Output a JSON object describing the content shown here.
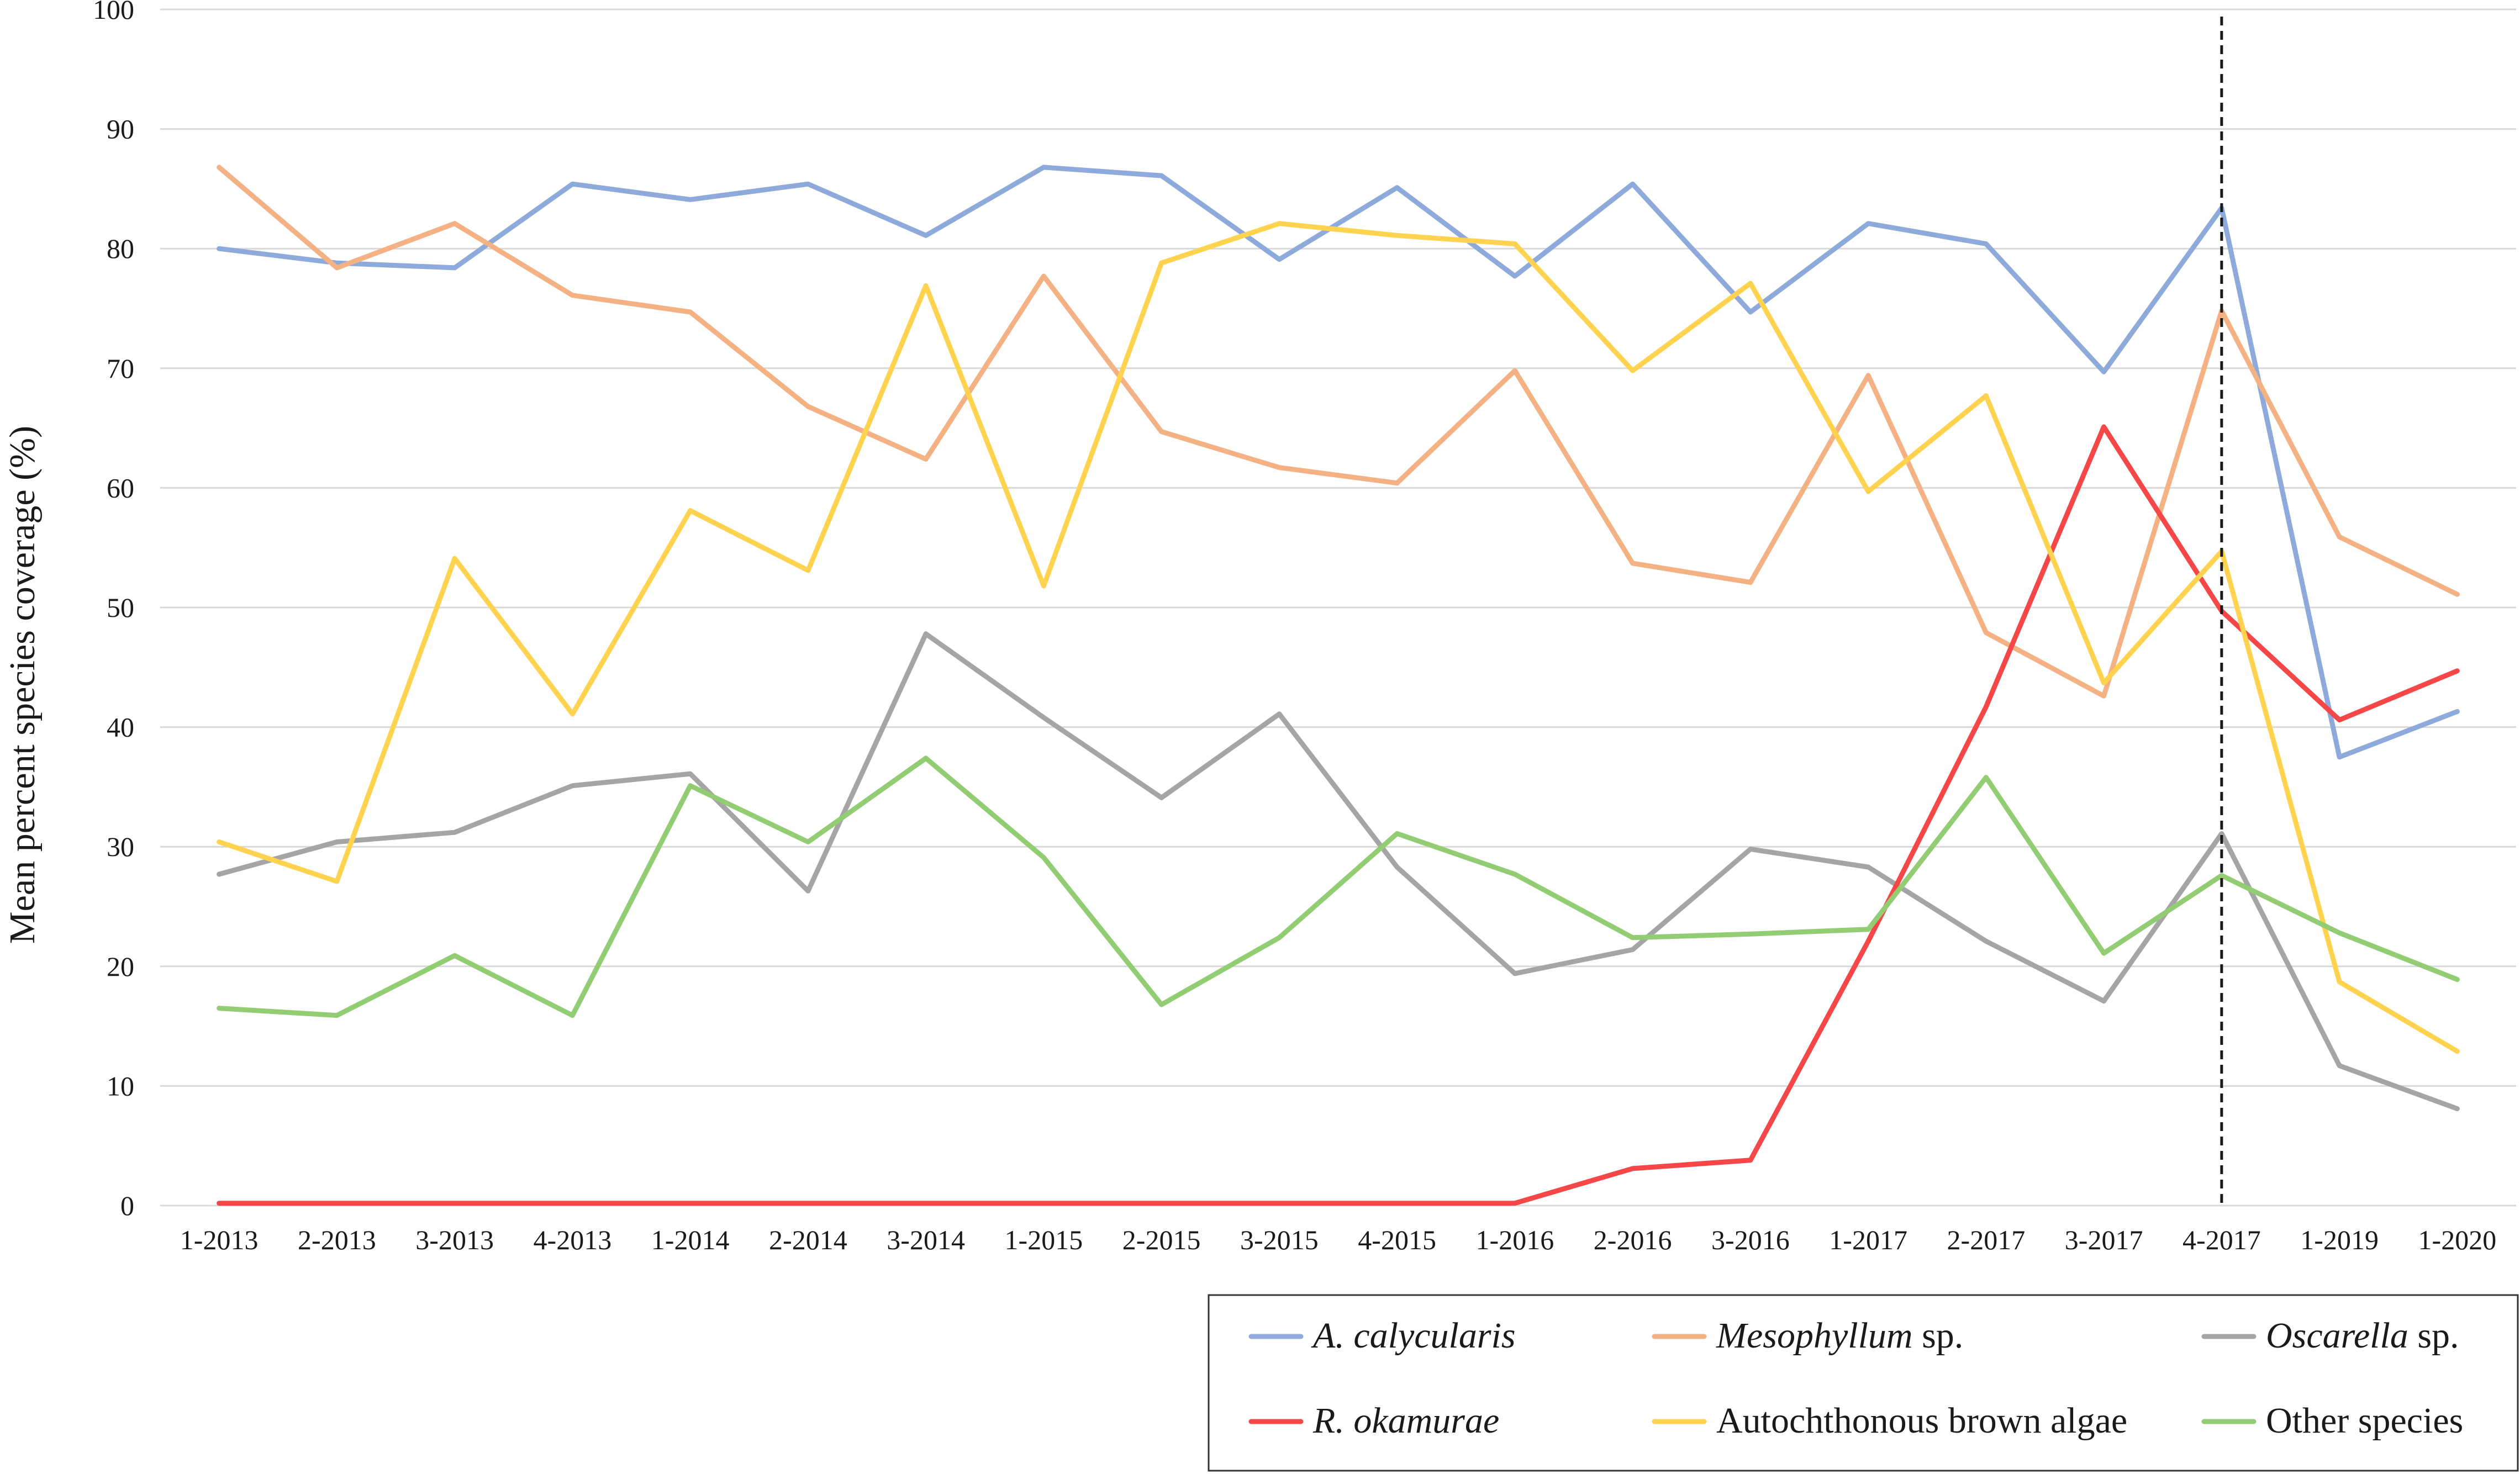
{
  "chart_data": {
    "type": "line",
    "title": "",
    "xlabel": "",
    "ylabel": "Mean percent species coverage (%)",
    "ylim": [
      0,
      100
    ],
    "yticks": [
      0,
      10,
      20,
      30,
      40,
      50,
      60,
      70,
      80,
      90,
      100
    ],
    "grid": "horizontal",
    "legend_position": "bottom-right",
    "categories": [
      "1-2013",
      "2-2013",
      "3-2013",
      "4-2013",
      "1-2014",
      "2-2014",
      "3-2014",
      "1-2015",
      "2-2015",
      "3-2015",
      "4-2015",
      "1-2016",
      "2-2016",
      "3-2016",
      "1-2017",
      "2-2017",
      "3-2017",
      "4-2017",
      "1-2019",
      "1-2020"
    ],
    "reference_line": {
      "category": "4-2017",
      "style": "dashed",
      "color": "#1a1a1a"
    },
    "series": [
      {
        "name": "A. calycularis",
        "name_italic": "A. calycularis",
        "name_suffix": "",
        "color": "#8eaadb",
        "values": [
          80,
          78.8,
          78.4,
          85.4,
          84.1,
          85.4,
          81.1,
          86.8,
          86.1,
          79.1,
          85.1,
          77.7,
          85.4,
          74.7,
          82.1,
          80.4,
          69.7,
          83.4,
          37.5,
          41.3
        ]
      },
      {
        "name": "Mesophyllum sp.",
        "name_italic": "Mesophyllum",
        "name_suffix": " sp.",
        "color": "#f4b183",
        "values": [
          86.8,
          78.4,
          82.1,
          76.1,
          74.7,
          66.8,
          62.4,
          77.7,
          64.7,
          61.7,
          60.4,
          69.8,
          53.7,
          52.1,
          69.4,
          47.9,
          42.6,
          74.8,
          55.9,
          51.1
        ]
      },
      {
        "name": "Oscarella sp.",
        "name_italic": "Oscarella",
        "name_suffix": " sp.",
        "color": "#a5a5a5",
        "values": [
          27.7,
          30.4,
          31.2,
          35.1,
          36.1,
          26.3,
          47.8,
          40.8,
          34.1,
          41.1,
          28.3,
          19.4,
          21.4,
          29.8,
          28.3,
          22.1,
          17.1,
          31.1,
          11.7,
          8.1
        ]
      },
      {
        "name": "R. okamurae",
        "name_italic": "R. okamurae",
        "name_suffix": "",
        "color": "#f54747",
        "values": [
          0.2,
          0.2,
          0.2,
          0.2,
          0.2,
          0.2,
          0.2,
          0.2,
          0.2,
          0.2,
          0.2,
          0.2,
          3.1,
          3.8,
          22.1,
          41.7,
          65.1,
          49.7,
          40.6,
          44.7
        ]
      },
      {
        "name": "Autochthonous brown algae",
        "name_italic": "",
        "name_suffix": "Autochthonous brown algae",
        "color": "#ffd34f",
        "values": [
          30.4,
          27.1,
          54.1,
          41.1,
          58.1,
          53.1,
          76.9,
          51.8,
          78.8,
          82.1,
          81.1,
          80.4,
          69.8,
          77.1,
          59.7,
          67.7,
          43.7,
          54.7,
          18.7,
          12.9
        ]
      },
      {
        "name": "Other species",
        "name_italic": "",
        "name_suffix": "Other species",
        "color": "#92cd74",
        "values": [
          16.5,
          15.9,
          20.9,
          15.9,
          35.1,
          30.4,
          37.4,
          29.1,
          16.8,
          22.4,
          31.1,
          27.7,
          22.4,
          22.7,
          23.1,
          35.8,
          21.1,
          27.6,
          22.8,
          18.9
        ]
      }
    ]
  }
}
